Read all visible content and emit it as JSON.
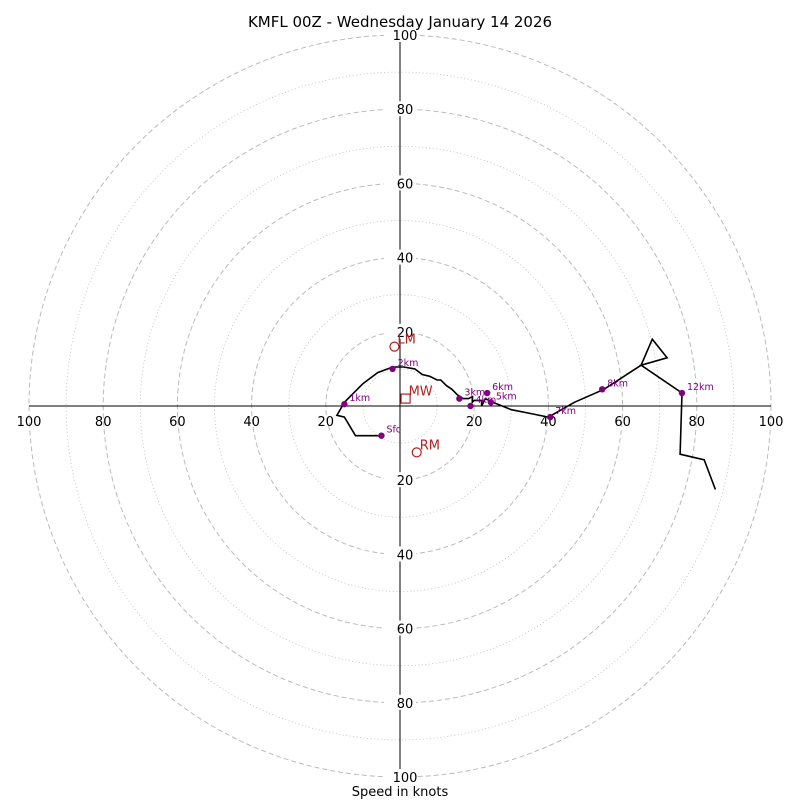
{
  "chart_data": {
    "type": "hodograph",
    "title": "KMFL 00Z - Wednesday January 14 2026",
    "xlabel": "Speed in knots",
    "units": "knots",
    "max_speed": 100,
    "ring_step": 20,
    "tick_labels": [
      "100",
      "80",
      "60",
      "40",
      "20",
      "20",
      "40",
      "60",
      "80",
      "100"
    ],
    "colors": {
      "trace": "#000000",
      "height_marker": "#800080",
      "motion_marker": "#b22222",
      "ring": "#bbbbbb",
      "axis": "#000000"
    },
    "trace": [
      {
        "u": -5,
        "v": -8
      },
      {
        "u": -12,
        "v": -8
      },
      {
        "u": -15,
        "v": -3
      },
      {
        "u": -17,
        "v": -2.5
      },
      {
        "u": -15,
        "v": 1
      },
      {
        "u": -10,
        "v": 6
      },
      {
        "u": -6,
        "v": 9
      },
      {
        "u": -2,
        "v": 10.5
      },
      {
        "u": 1,
        "v": 10.5
      },
      {
        "u": 4,
        "v": 10
      },
      {
        "u": 6,
        "v": 8.5
      },
      {
        "u": 8,
        "v": 8
      },
      {
        "u": 10,
        "v": 7
      },
      {
        "u": 11,
        "v": 7
      },
      {
        "u": 12.5,
        "v": 5.5
      },
      {
        "u": 14,
        "v": 4.5
      },
      {
        "u": 15.5,
        "v": 3
      },
      {
        "u": 17,
        "v": 2
      },
      {
        "u": 18.5,
        "v": 2
      },
      {
        "u": 19.5,
        "v": 2.5
      },
      {
        "u": 19.5,
        "v": 1
      },
      {
        "u": 20,
        "v": 1.5
      },
      {
        "u": 22,
        "v": 1.5
      },
      {
        "u": 22,
        "v": 0
      },
      {
        "u": 23,
        "v": 2
      },
      {
        "u": 25,
        "v": 1
      },
      {
        "u": 30,
        "v": -1
      },
      {
        "u": 35,
        "v": -2
      },
      {
        "u": 40,
        "v": -3
      },
      {
        "u": 47,
        "v": 1
      },
      {
        "u": 55,
        "v": 4.5
      },
      {
        "u": 65,
        "v": 11
      },
      {
        "u": 68,
        "v": 18
      },
      {
        "u": 72,
        "v": 13
      },
      {
        "u": 65,
        "v": 11
      },
      {
        "u": 76,
        "v": 3.5
      },
      {
        "u": 75.5,
        "v": -13
      },
      {
        "u": 82,
        "v": -14.5
      },
      {
        "u": 85,
        "v": -22.5
      }
    ],
    "height_markers": [
      {
        "label": "Sfc",
        "u": -5,
        "v": -8
      },
      {
        "label": "1km",
        "u": -15,
        "v": 0.5
      },
      {
        "label": "2km",
        "u": -2,
        "v": 10
      },
      {
        "label": "3km",
        "u": 16,
        "v": 2
      },
      {
        "label": "4km",
        "u": 19,
        "v": 0
      },
      {
        "label": "5km",
        "u": 24.5,
        "v": 1
      },
      {
        "label": "6km",
        "u": 23.5,
        "v": 3.5
      },
      {
        "label": "7km",
        "u": 40.5,
        "v": -3
      },
      {
        "label": "8km",
        "u": 54.5,
        "v": 4.5
      },
      {
        "label": "12km",
        "u": 76,
        "v": 3.5
      }
    ],
    "storm_motions": [
      {
        "label": "LM",
        "symbol": "circle",
        "u": -1.5,
        "v": 16
      },
      {
        "label": "MW",
        "symbol": "square",
        "u": 1.5,
        "v": 2
      },
      {
        "label": "RM",
        "symbol": "circle",
        "u": 4.5,
        "v": -12.5
      }
    ]
  }
}
